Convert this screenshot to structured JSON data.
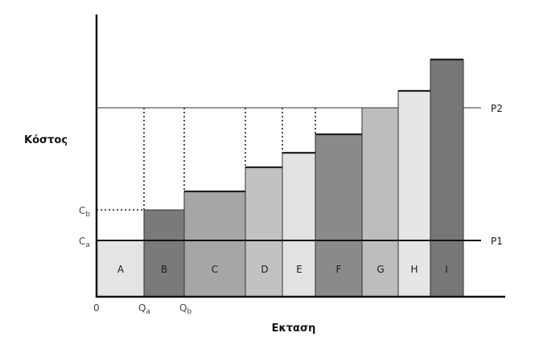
{
  "diagram": {
    "ylabel": "Κόστος",
    "xlabel": "Εκταση",
    "origin_label": "0",
    "q_labels": [
      {
        "main": "Q",
        "sub": "a"
      },
      {
        "main": "Q",
        "sub": "b"
      }
    ],
    "c_labels": [
      {
        "main": "C",
        "sub": "b"
      },
      {
        "main": "C",
        "sub": "a"
      }
    ],
    "price_labels": [
      "P2",
      "P1"
    ],
    "blocks": [
      {
        "label": "A",
        "fill": "#e4e4e4"
      },
      {
        "label": "B",
        "fill": "#7a7a7a"
      },
      {
        "label": "C",
        "fill": "#a6a6a6"
      },
      {
        "label": "D",
        "fill": "#c2c2c2"
      },
      {
        "label": "E",
        "fill": "#e2e2e2"
      },
      {
        "label": "F",
        "fill": "#8a8a8a"
      },
      {
        "label": "G",
        "fill": "#bdbdbd"
      },
      {
        "label": "H",
        "fill": "#e6e6e6"
      },
      {
        "label": "I",
        "fill": "#777777"
      }
    ]
  }
}
